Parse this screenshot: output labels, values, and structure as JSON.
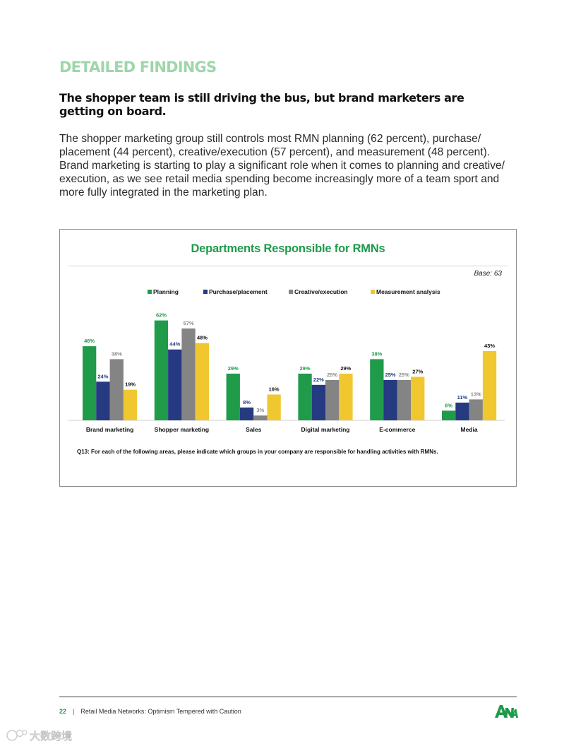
{
  "section_title": "DETAILED FINDINGS",
  "subhead": "The shopper team is still driving the bus, but brand marketers are getting on board.",
  "body": "The shopper marketing group still controls most RMN planning (62 percent), purchase/ placement (44 percent), creative/execution (57 percent), and measurement (48 percent). Brand marketing is starting to play a significant role when it comes to planning and creative/ execution, as we see retail media spending become increasingly more of a team sport and more fully integrated in the marketing plan.",
  "chart": {
    "base": "Base: 63",
    "footnote": "Q13: For each of the following areas, please indicate which groups in your company are responsible for handling activities with RMNs."
  },
  "chart_data": {
    "type": "bar",
    "title": "Departments Responsible for RMNs",
    "categories": [
      "Brand marketing",
      "Shopper marketing",
      "Sales",
      "Digital marketing",
      "E-commerce",
      "Media"
    ],
    "series": [
      {
        "name": "Planning",
        "color": "#1f9b49",
        "values": [
          46,
          62,
          29,
          29,
          38,
          6
        ]
      },
      {
        "name": "Purchase/placement",
        "color": "#253a80",
        "values": [
          24,
          44,
          8,
          22,
          25,
          11
        ]
      },
      {
        "name": "Creative/execution",
        "color": "#848484",
        "values": [
          38,
          57,
          3,
          25,
          25,
          13
        ]
      },
      {
        "name": "Measurement analysis",
        "color": "#f0c72f",
        "values": [
          19,
          48,
          16,
          29,
          27,
          43
        ]
      }
    ],
    "value_suffix": "%",
    "ylim": [
      0,
      70
    ],
    "grid": false,
    "legend_position": "top-center"
  },
  "footer": {
    "page_number": "22",
    "separator": "|",
    "doc_title": "Retail Media Networks: Optimism Tempered with Caution",
    "logo_text": "ANA",
    "watermark_text": "大数跨境"
  }
}
